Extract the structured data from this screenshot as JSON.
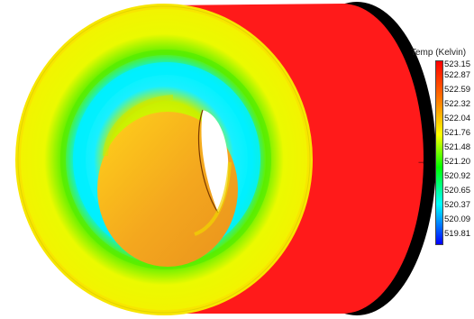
{
  "legend": {
    "title": "Temp (Kelvin)",
    "ticks": [
      "523.15",
      "522.87",
      "522.59",
      "522.32",
      "522.04",
      "521.76",
      "521.48",
      "521.20",
      "520.92",
      "520.65",
      "520.37",
      "520.09",
      "519.81"
    ],
    "range": [
      519.81,
      523.15
    ],
    "colormap": [
      "#ff0000",
      "#ff7f00",
      "#ffff00",
      "#00ff00",
      "#00ffff",
      "#0000ff"
    ],
    "pointer": "→"
  },
  "model": {
    "shell_color": "#ff1a1a",
    "back_face_color": "#000000",
    "ring_colors": [
      "#f7fb05",
      "#e8fa00",
      "#64f200",
      "#12e6ff",
      "#00f4ff",
      "#bff500",
      "#f0f800"
    ],
    "inner_face_color": "#f5a21a"
  }
}
